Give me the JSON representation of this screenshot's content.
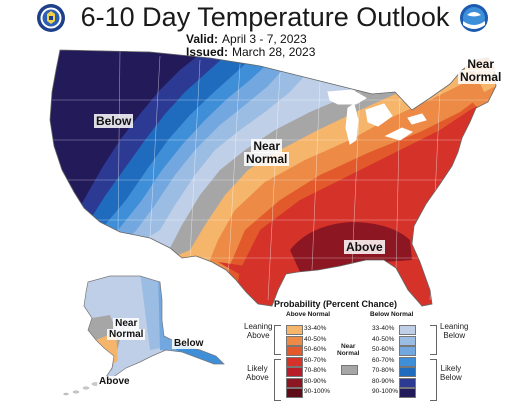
{
  "header": {
    "title": "6-10 Day Temperature Outlook",
    "valid_label": "Valid:",
    "valid_value": "April 3 - 7, 2023",
    "issued_label": "Issued:",
    "issued_value": "March 28, 2023"
  },
  "logos": {
    "left": "doc-seal-icon",
    "right": "noaa-logo-icon"
  },
  "region_labels": {
    "below": "Below",
    "near_normal_central_1": "Near",
    "near_normal_central_2": "Normal",
    "near_normal_ne_1": "Near",
    "near_normal_ne_2": "Normal",
    "above": "Above",
    "ak_near_normal_1": "Near",
    "ak_near_normal_2": "Normal",
    "ak_below": "Below",
    "ak_above": "Above"
  },
  "legend": {
    "title": "Probability (Percent Chance)",
    "above_header": "Above Normal",
    "below_header": "Below Normal",
    "near_header_1": "Near",
    "near_header_2": "Normal",
    "leaning_above_1": "Leaning",
    "leaning_above_2": "Above",
    "likely_above_1": "Likely",
    "likely_above_2": "Above",
    "leaning_below_1": "Leaning",
    "leaning_below_2": "Below",
    "likely_below_1": "Likely",
    "likely_below_2": "Below",
    "above": [
      {
        "range": "33-40%",
        "color": "#f5b56b"
      },
      {
        "range": "40-50%",
        "color": "#ec8a46"
      },
      {
        "range": "50-60%",
        "color": "#e25a2c"
      },
      {
        "range": "60-70%",
        "color": "#d5322a"
      },
      {
        "range": "70-80%",
        "color": "#b81e2a"
      },
      {
        "range": "80-90%",
        "color": "#8c1722"
      },
      {
        "range": "90-100%",
        "color": "#5e0c18"
      }
    ],
    "below": [
      {
        "range": "33-40%",
        "color": "#bfcfe8"
      },
      {
        "range": "40-50%",
        "color": "#9cbde3"
      },
      {
        "range": "50-60%",
        "color": "#72a7e0"
      },
      {
        "range": "60-70%",
        "color": "#3f8fd8"
      },
      {
        "range": "70-80%",
        "color": "#1f6cbf"
      },
      {
        "range": "80-90%",
        "color": "#2c3a94"
      },
      {
        "range": "90-100%",
        "color": "#231a5a"
      }
    ],
    "near_color": "#a6a6a6"
  }
}
